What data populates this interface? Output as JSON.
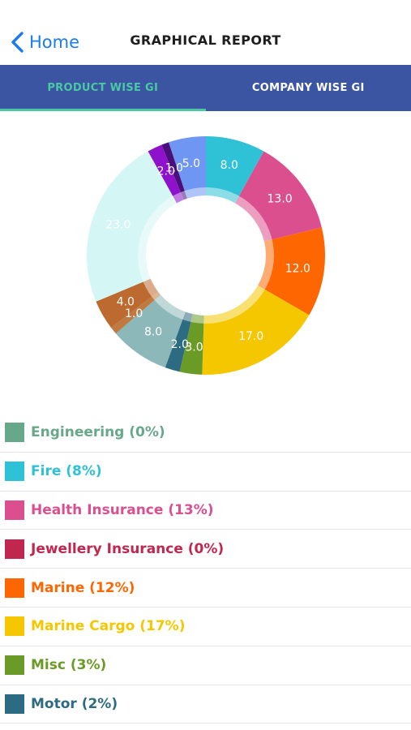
{
  "nav": {
    "back_label": "Home",
    "title": "GRAPHICAL REPORT"
  },
  "tabs": [
    {
      "label": "PRODUCT WISE GI",
      "active": true
    },
    {
      "label": "COMPANY WISE GI",
      "active": false
    }
  ],
  "chart_data": {
    "type": "pie",
    "style": "donut",
    "start_angle_deg": 0,
    "direction": "clockwise",
    "slices": [
      {
        "value": 8.0,
        "label": "8.0",
        "color": "#2fc2d6"
      },
      {
        "value": 13.0,
        "label": "13.0",
        "color": "#dc4f8f"
      },
      {
        "value": 12.0,
        "label": "12.0",
        "color": "#fe6602"
      },
      {
        "value": 17.0,
        "label": "17.0",
        "color": "#f5c700"
      },
      {
        "value": 3.0,
        "label": "3.0",
        "color": "#6a9b26"
      },
      {
        "value": 2.0,
        "label": "2.0",
        "color": "#2d6b82"
      },
      {
        "value": 8.0,
        "label": "8.0",
        "color": "#8db8b9"
      },
      {
        "value": 1.0,
        "label": "1.0",
        "color": "#be7a40"
      },
      {
        "value": 4.0,
        "label": "4.0",
        "color": "#bd6a30"
      },
      {
        "value": 23.0,
        "label": "23.0",
        "color": "#d4f6f5"
      },
      {
        "value": 2.0,
        "label": "2.0",
        "color": "#8e12cc"
      },
      {
        "value": 1.0,
        "label": "1.0",
        "color": "#4a0f7a"
      },
      {
        "value": 5.0,
        "label": "5.0",
        "color": "#6e96f2"
      }
    ]
  },
  "legend": [
    {
      "text": "Engineering (0%)",
      "color": "#67a88a"
    },
    {
      "text": "Fire (8%)",
      "color": "#2fc2d6"
    },
    {
      "text": "Health Insurance (13%)",
      "color": "#dc4f8f"
    },
    {
      "text": "Jewellery Insurance (0%)",
      "color": "#c1264f"
    },
    {
      "text": "Marine (12%)",
      "color": "#fe6602"
    },
    {
      "text": "Marine Cargo (17%)",
      "color": "#f5c700"
    },
    {
      "text": "Misc (3%)",
      "color": "#6a9b26"
    },
    {
      "text": "Motor (2%)",
      "color": "#2d6b82"
    }
  ]
}
